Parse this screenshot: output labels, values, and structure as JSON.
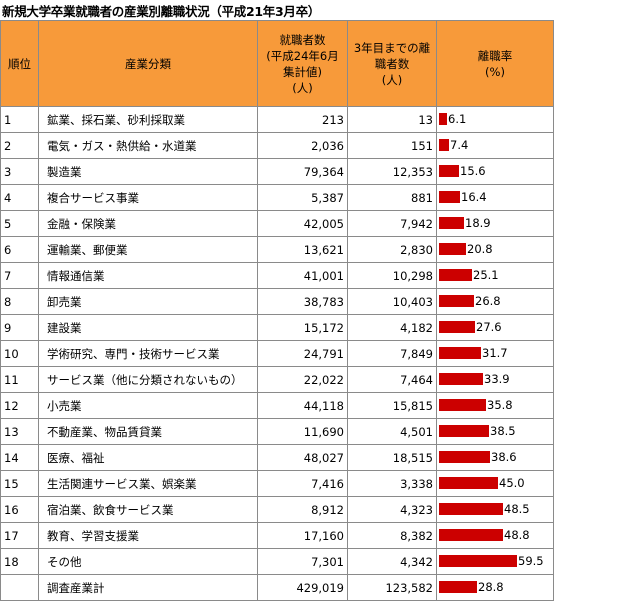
{
  "title": "新規大学卒業就職者の産業別離職状況（平成21年3月卒）",
  "header": {
    "rank": "順位",
    "industry": "産業分類",
    "employed": [
      "就職者数",
      "(平成24年6月",
      "集計値)",
      "(人)"
    ],
    "separated": [
      "3年目までの離",
      "職者数",
      "(人)"
    ],
    "rate": [
      "離職率",
      "(%)"
    ]
  },
  "chart_data": {
    "type": "table",
    "columns": [
      "順位",
      "産業分類",
      "就職者数（平成24年6月集計値）（人）",
      "3年目までの離職者数（人）",
      "離職率（%）"
    ],
    "rows": [
      {
        "rank": "1",
        "industry": "鉱業、採石業、砂利採取業",
        "employed": "213",
        "separated": "13",
        "rate": 6.1,
        "rate_label": "6.1"
      },
      {
        "rank": "2",
        "industry": "電気・ガス・熱供給・水道業",
        "employed": "2,036",
        "separated": "151",
        "rate": 7.4,
        "rate_label": "7.4"
      },
      {
        "rank": "3",
        "industry": "製造業",
        "employed": "79,364",
        "separated": "12,353",
        "rate": 15.6,
        "rate_label": "15.6"
      },
      {
        "rank": "4",
        "industry": "複合サービス事業",
        "employed": "5,387",
        "separated": "881",
        "rate": 16.4,
        "rate_label": "16.4"
      },
      {
        "rank": "5",
        "industry": "金融・保険業",
        "employed": "42,005",
        "separated": "7,942",
        "rate": 18.9,
        "rate_label": "18.9"
      },
      {
        "rank": "6",
        "industry": "運輸業、郵便業",
        "employed": "13,621",
        "separated": "2,830",
        "rate": 20.8,
        "rate_label": "20.8"
      },
      {
        "rank": "7",
        "industry": "情報通信業",
        "employed": "41,001",
        "separated": "10,298",
        "rate": 25.1,
        "rate_label": "25.1"
      },
      {
        "rank": "8",
        "industry": "卸売業",
        "employed": "38,783",
        "separated": "10,403",
        "rate": 26.8,
        "rate_label": "26.8"
      },
      {
        "rank": "9",
        "industry": "建設業",
        "employed": "15,172",
        "separated": "4,182",
        "rate": 27.6,
        "rate_label": "27.6"
      },
      {
        "rank": "10",
        "industry": "学術研究、専門・技術サービス業",
        "employed": "24,791",
        "separated": "7,849",
        "rate": 31.7,
        "rate_label": "31.7"
      },
      {
        "rank": "11",
        "industry": "サービス業（他に分類されないもの）",
        "employed": "22,022",
        "separated": "7,464",
        "rate": 33.9,
        "rate_label": "33.9"
      },
      {
        "rank": "12",
        "industry": "小売業",
        "employed": "44,118",
        "separated": "15,815",
        "rate": 35.8,
        "rate_label": "35.8"
      },
      {
        "rank": "13",
        "industry": "不動産業、物品賃貸業",
        "employed": "11,690",
        "separated": "4,501",
        "rate": 38.5,
        "rate_label": "38.5"
      },
      {
        "rank": "14",
        "industry": "医療、福祉",
        "employed": "48,027",
        "separated": "18,515",
        "rate": 38.6,
        "rate_label": "38.6"
      },
      {
        "rank": "15",
        "industry": "生活関連サービス業、娯楽業",
        "employed": "7,416",
        "separated": "3,338",
        "rate": 45.0,
        "rate_label": "45.0"
      },
      {
        "rank": "16",
        "industry": "宿泊業、飲食サービス業",
        "employed": "8,912",
        "separated": "4,323",
        "rate": 48.5,
        "rate_label": "48.5"
      },
      {
        "rank": "17",
        "industry": "教育、学習支援業",
        "employed": "17,160",
        "separated": "8,382",
        "rate": 48.8,
        "rate_label": "48.8"
      },
      {
        "rank": "18",
        "industry": "その他",
        "employed": "7,301",
        "separated": "4,342",
        "rate": 59.5,
        "rate_label": "59.5"
      },
      {
        "rank": "",
        "industry": "調査産業計",
        "employed": "429,019",
        "separated": "123,582",
        "rate": 28.8,
        "rate_label": "28.8"
      }
    ],
    "bar_color": "#cc0000",
    "header_color": "#f79a3a"
  }
}
